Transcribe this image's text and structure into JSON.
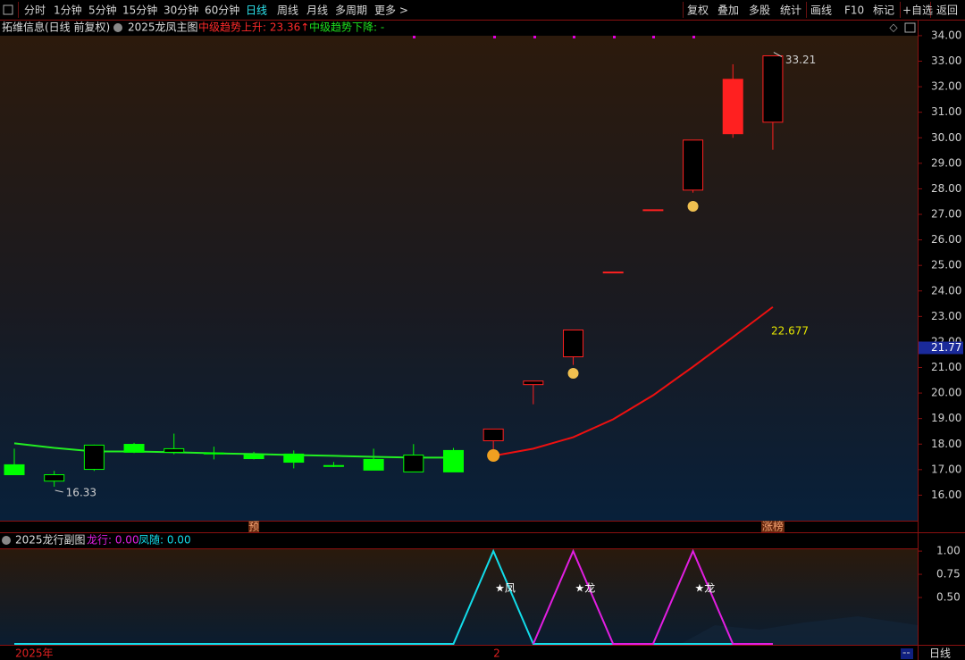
{
  "toolbar": {
    "left": [
      "分时",
      "1分钟",
      "5分钟",
      "15分钟",
      "30分钟",
      "60分钟",
      "日线",
      "周线",
      "月线",
      "多周期",
      "更多 >"
    ],
    "active": 6,
    "right": [
      "复权",
      "叠加",
      "多股",
      "统计",
      "画线",
      "F10",
      "标记",
      "+自选",
      "返回"
    ]
  },
  "chart_data": [
    {
      "type": "candlestick",
      "title": "拓维信息(日线 前复权)",
      "subtitle": "2025龙凤主图",
      "indicators": [
        {
          "text": "中级趋势上升: 23.36↑",
          "color": "#ff2a2a"
        },
        {
          "text": "中级趋势下降: -",
          "color": "#1ee01e"
        }
      ],
      "categories": [
        null,
        null,
        null,
        null,
        null,
        null,
        null,
        null,
        null,
        null,
        null,
        null,
        null,
        null,
        null,
        null,
        null,
        null,
        null,
        null
      ],
      "open": [
        17.19,
        16.8,
        17.96,
        17.99,
        17.82,
        17.65,
        17.57,
        17.61,
        17.16,
        17.4,
        17.57,
        17.75,
        18.13,
        20.33,
        21.42,
        24.74,
        27.18,
        27.95,
        30.16,
        30.61
      ],
      "high": [
        17.82,
        16.95,
        17.98,
        18.05,
        18.41,
        17.9,
        17.7,
        17.75,
        17.3,
        17.82,
        18.0,
        17.85,
        18.59,
        20.47,
        22.47,
        24.74,
        27.18,
        29.91,
        32.88,
        33.21
      ],
      "low": [
        16.8,
        16.33,
        16.95,
        17.65,
        17.6,
        17.4,
        17.4,
        17.05,
        17.1,
        16.98,
        16.91,
        16.91,
        17.55,
        19.56,
        21.1,
        24.74,
        27.18,
        27.85,
        30.0,
        29.53
      ],
      "close": [
        16.8,
        16.55,
        17.01,
        17.68,
        17.68,
        17.63,
        17.43,
        17.29,
        17.14,
        16.98,
        16.91,
        16.91,
        18.59,
        20.47,
        22.47,
        24.74,
        27.18,
        29.91,
        32.29,
        33.21
      ],
      "hollow": [
        false,
        true,
        true,
        false,
        true,
        false,
        false,
        false,
        false,
        false,
        true,
        false,
        true,
        true,
        true,
        false,
        false,
        true,
        false,
        true
      ],
      "up_color": "#ff2020",
      "down_color": "#00ff00",
      "lines": [
        {
          "color": "#22ee22",
          "values": [
            18.03,
            17.85,
            17.71,
            17.71,
            17.68,
            17.64,
            17.61,
            17.57,
            17.54,
            17.5,
            17.47,
            17.47,
            null,
            null,
            null,
            null,
            null,
            null,
            null,
            null
          ]
        },
        {
          "color": "#ee1010",
          "values": [
            null,
            null,
            null,
            null,
            null,
            null,
            null,
            null,
            null,
            null,
            null,
            null,
            17.54,
            17.82,
            18.27,
            18.97,
            19.91,
            21.03,
            22.19,
            23.37
          ]
        }
      ],
      "annotations": [
        "16.33",
        "33.21",
        "22.677"
      ],
      "last_price": {
        "value": 21.77,
        "label": "21.77"
      },
      "markers": [
        "预",
        "涨榜"
      ],
      "ylim": [
        15.0,
        34.05
      ],
      "yticks": [
        {
          "value": 16,
          "label": "16.00"
        },
        {
          "value": 17,
          "label": "17.00"
        },
        {
          "value": 18,
          "label": "18.00"
        },
        {
          "value": 19,
          "label": "19.00"
        },
        {
          "value": 20,
          "label": "20.00"
        },
        {
          "value": 21,
          "label": "21.00"
        },
        {
          "value": 22,
          "label": "22.00"
        },
        {
          "value": 23,
          "label": "23.00"
        },
        {
          "value": 24,
          "label": "24.00"
        },
        {
          "value": 25,
          "label": "25.00"
        },
        {
          "value": 26,
          "label": "26.00"
        },
        {
          "value": 27,
          "label": "27.00"
        },
        {
          "value": 28,
          "label": "28.00"
        },
        {
          "value": 29,
          "label": "29.00"
        },
        {
          "value": 30,
          "label": "30.00"
        },
        {
          "value": 31,
          "label": "31.00"
        },
        {
          "value": 32,
          "label": "32.00"
        },
        {
          "value": 33,
          "label": "33.00"
        },
        {
          "value": 34,
          "label": "34.00"
        }
      ],
      "grid": false
    },
    {
      "type": "line",
      "title": "2025龙行副图",
      "categories": [
        null,
        null,
        null,
        null,
        null,
        null,
        null,
        null,
        null,
        null,
        null,
        null,
        null,
        null,
        null,
        null,
        null,
        null,
        null,
        null
      ],
      "series": [
        {
          "name": "凤随: 0.00",
          "color": "#12dcea",
          "values": [
            0,
            0,
            0,
            0,
            0,
            0,
            0,
            0,
            0,
            0,
            0,
            0,
            1,
            0,
            0,
            0,
            0,
            0,
            0,
            0
          ]
        },
        {
          "name": "龙行: 0.00",
          "color": "#e21ee2",
          "values": [
            null,
            null,
            null,
            null,
            null,
            null,
            null,
            null,
            null,
            null,
            null,
            null,
            null,
            0,
            1,
            0,
            0,
            1,
            0,
            0
          ]
        }
      ],
      "annotations": [
        "★凤",
        "★龙",
        "★龙"
      ],
      "ylim": [
        0,
        1.02
      ],
      "yticks": [
        {
          "value": 0.5,
          "label": "0.50"
        },
        {
          "value": 0.75,
          "label": "0.75"
        },
        {
          "value": 1,
          "label": "1.00"
        }
      ]
    }
  ],
  "footer": {
    "year": "2025年",
    "mark": "2",
    "right": "--",
    "period": "日线"
  }
}
